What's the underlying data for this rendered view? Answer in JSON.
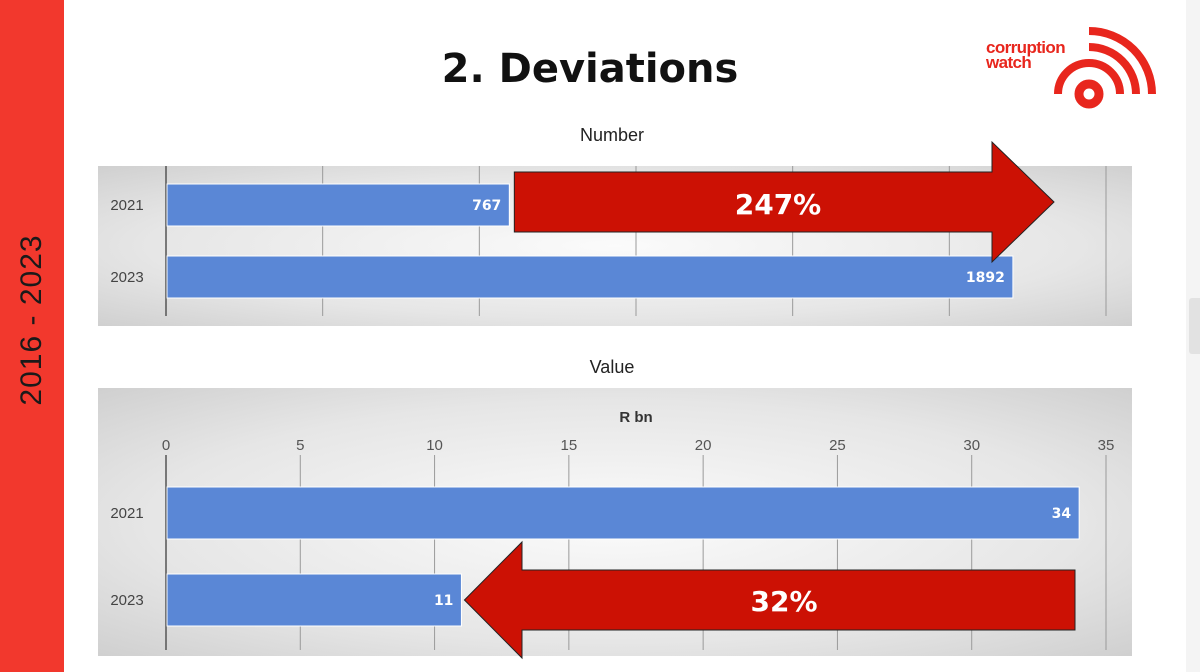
{
  "sidebar": {
    "label": "2016 - 2023"
  },
  "title": "2. Deviations",
  "logo": {
    "line1": "corruption",
    "line2": "watch",
    "brand_color": "#e8261d"
  },
  "colors": {
    "bar": "#5a87d6",
    "arrow": "#cc1104",
    "sidebar": "#f2382d"
  },
  "chart_data": [
    {
      "type": "bar",
      "orientation": "horizontal",
      "title": "Number",
      "categories": [
        "2021",
        "2023"
      ],
      "values": [
        767,
        1892
      ],
      "xlim": [
        0,
        2100
      ],
      "data_labels": [
        "767",
        "1892"
      ],
      "grid": true,
      "annotation": {
        "text": "247%",
        "direction": "right",
        "from_category": "2021"
      }
    },
    {
      "type": "bar",
      "orientation": "horizontal",
      "title": "Value",
      "xlabel": "R bn",
      "categories": [
        "2021",
        "2023"
      ],
      "values": [
        34,
        11
      ],
      "xlim": [
        0,
        35
      ],
      "xticks": [
        "0",
        "5",
        "10",
        "15",
        "20",
        "25",
        "30",
        "35"
      ],
      "data_labels": [
        "34",
        "11"
      ],
      "grid": true,
      "annotation": {
        "text": "32%",
        "direction": "left",
        "from_category": "2021"
      }
    }
  ]
}
